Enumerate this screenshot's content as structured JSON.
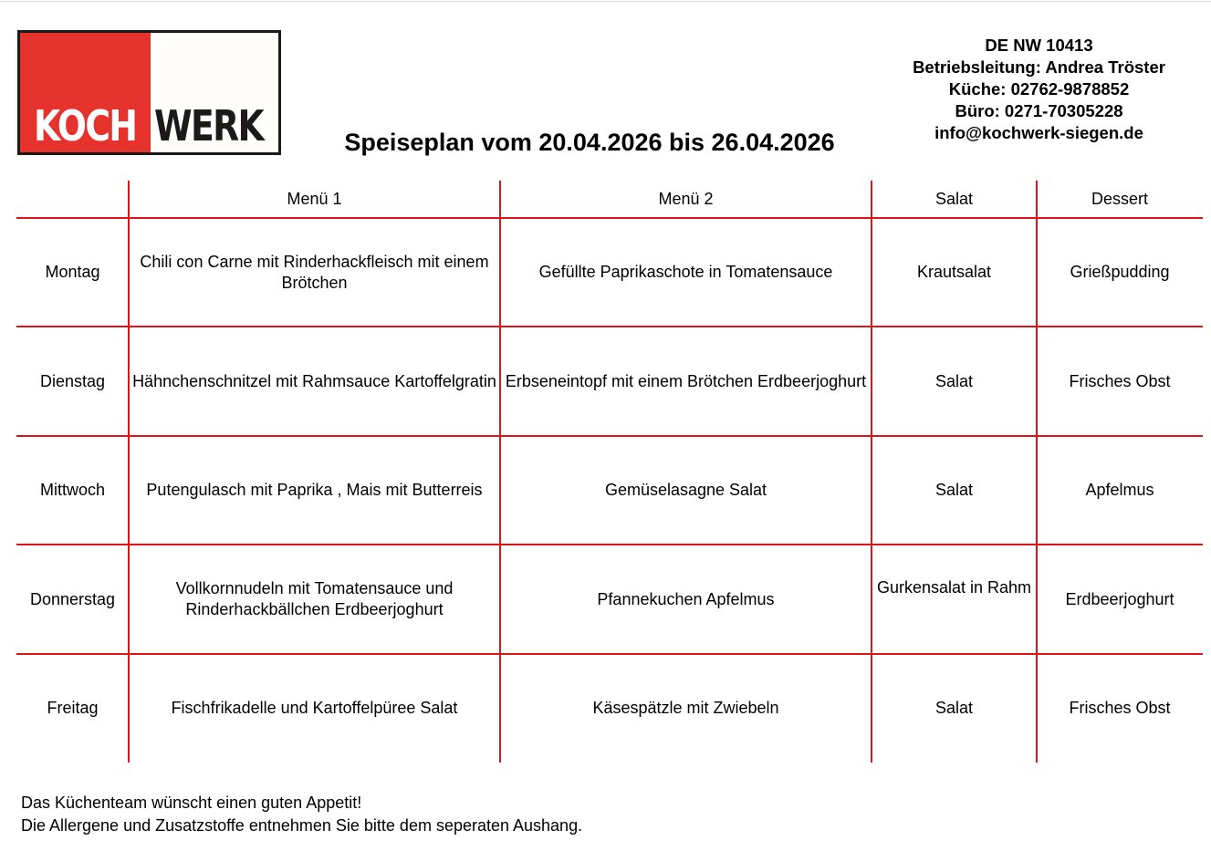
{
  "logo": {
    "part1": "KOCH",
    "part2": "WERK",
    "colors": {
      "red": "#e5322d",
      "dark": "#1a1a1a"
    }
  },
  "title": "Speiseplan vom 20.04.2026 bis 26.04.2026",
  "contact": {
    "id": "DE NW 10413",
    "management": "Betriebsleitung: Andrea Tröster",
    "kitchen": "Küche: 02762-9878852",
    "office": "Büro: 0271-70305228",
    "email": "info@kochwerk-siegen.de"
  },
  "table": {
    "line_color": "#e0131a",
    "headers": [
      "",
      "Menü 1",
      "Menü 2",
      "Salat",
      "Dessert"
    ],
    "rows": [
      {
        "day": "Montag",
        "menu1": "Chili con Carne mit Rinderhackfleisch mit einem Brötchen",
        "menu2": "Gefüllte Paprikaschote in Tomatensauce",
        "salad": "Krautsalat",
        "dessert": "Grießpudding"
      },
      {
        "day": "Dienstag",
        "menu1": "Hähnchenschnitzel mit Rahmsauce Kartoffelgratin",
        "menu2": "Erbseneintopf mit einem Brötchen Erdbeerjoghurt",
        "salad": "Salat",
        "dessert": "Frisches Obst"
      },
      {
        "day": "Mittwoch",
        "menu1": "Putengulasch mit Paprika , Mais mit Butterreis",
        "menu2": "Gemüselasagne Salat",
        "salad": "Salat",
        "dessert": "Apfelmus"
      },
      {
        "day": "Donnerstag",
        "menu1": "Vollkornnudeln mit Tomatensauce und Rinderhackbällchen Erdbeerjoghurt",
        "menu2": "Pfannekuchen Apfelmus",
        "salad": "Gurkensalat in Rahm",
        "dessert": "Erdbeerjoghurt"
      },
      {
        "day": "Freitag",
        "menu1": "Fischfrikadelle und Kartoffelpüree Salat",
        "menu2": "Käsespätzle mit Zwiebeln",
        "salad": "Salat",
        "dessert": "Frisches Obst"
      }
    ]
  },
  "footer": {
    "line1": "Das Küchenteam wünscht einen guten Appetit!",
    "line2": "Die Allergene und Zusatzstoffe entnehmen Sie bitte dem seperaten Aushang."
  }
}
